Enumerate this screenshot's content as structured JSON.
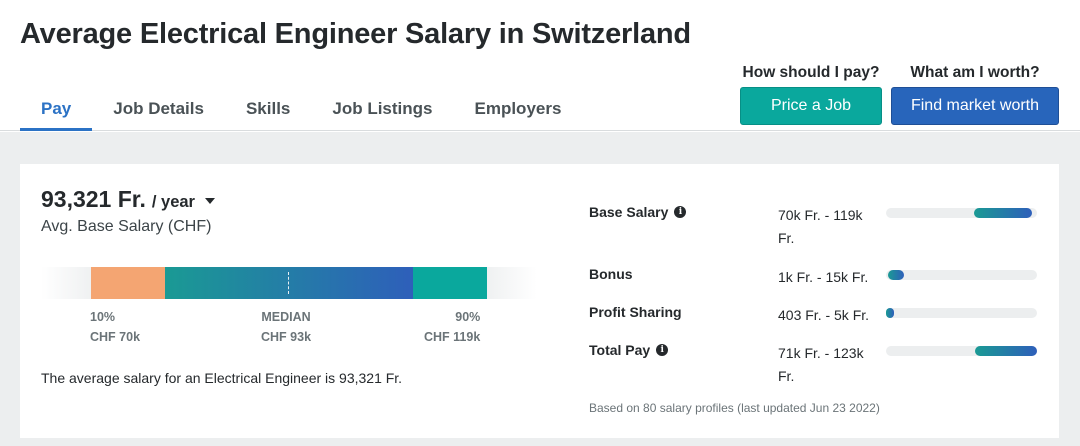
{
  "header": {
    "title": "Average Electrical Engineer Salary in Switzerland",
    "tabs": [
      {
        "label": "Pay",
        "active": true
      },
      {
        "label": "Job Details",
        "active": false
      },
      {
        "label": "Skills",
        "active": false
      },
      {
        "label": "Job Listings",
        "active": false
      },
      {
        "label": "Employers",
        "active": false
      }
    ],
    "cta": {
      "price_question": "How should I pay?",
      "price_button": "Price a Job",
      "worth_question": "What am I worth?",
      "worth_button": "Find market worth"
    }
  },
  "summary": {
    "value": "93,321 Fr.",
    "period": "/ year",
    "label": "Avg. Base Salary (CHF)",
    "percentiles": {
      "low_pct": "10%",
      "low_value": "CHF 70k",
      "median_label": "MEDIAN",
      "median_value": "CHF 93k",
      "high_pct": "90%",
      "high_value": "CHF 119k"
    },
    "sentence": "The average salary for an Electrical Engineer is 93,321 Fr."
  },
  "compensation": {
    "rows": [
      {
        "label": "Base Salary",
        "has_info": true,
        "range": "70k Fr. - 119k Fr.",
        "fill_start": 0.58,
        "fill_end": 0.97
      },
      {
        "label": "Bonus",
        "has_info": false,
        "range": "1k Fr. - 15k Fr.",
        "fill_start": 0.01,
        "fill_end": 0.12
      },
      {
        "label": "Profit Sharing",
        "has_info": false,
        "range": "403 Fr. - 5k Fr.",
        "fill_start": 0.0,
        "fill_end": 0.05
      },
      {
        "label": "Total Pay",
        "has_info": true,
        "range": "71k Fr. - 123k Fr.",
        "fill_start": 0.59,
        "fill_end": 1.0
      }
    ],
    "footnote": "Based on 80 salary profiles (last updated Jun 23 2022)"
  },
  "colors": {
    "accent_blue": "#2b72c5",
    "teal_button": "#0aa89d",
    "blue_button": "#2865bb",
    "low_segment": "#f4a572"
  }
}
